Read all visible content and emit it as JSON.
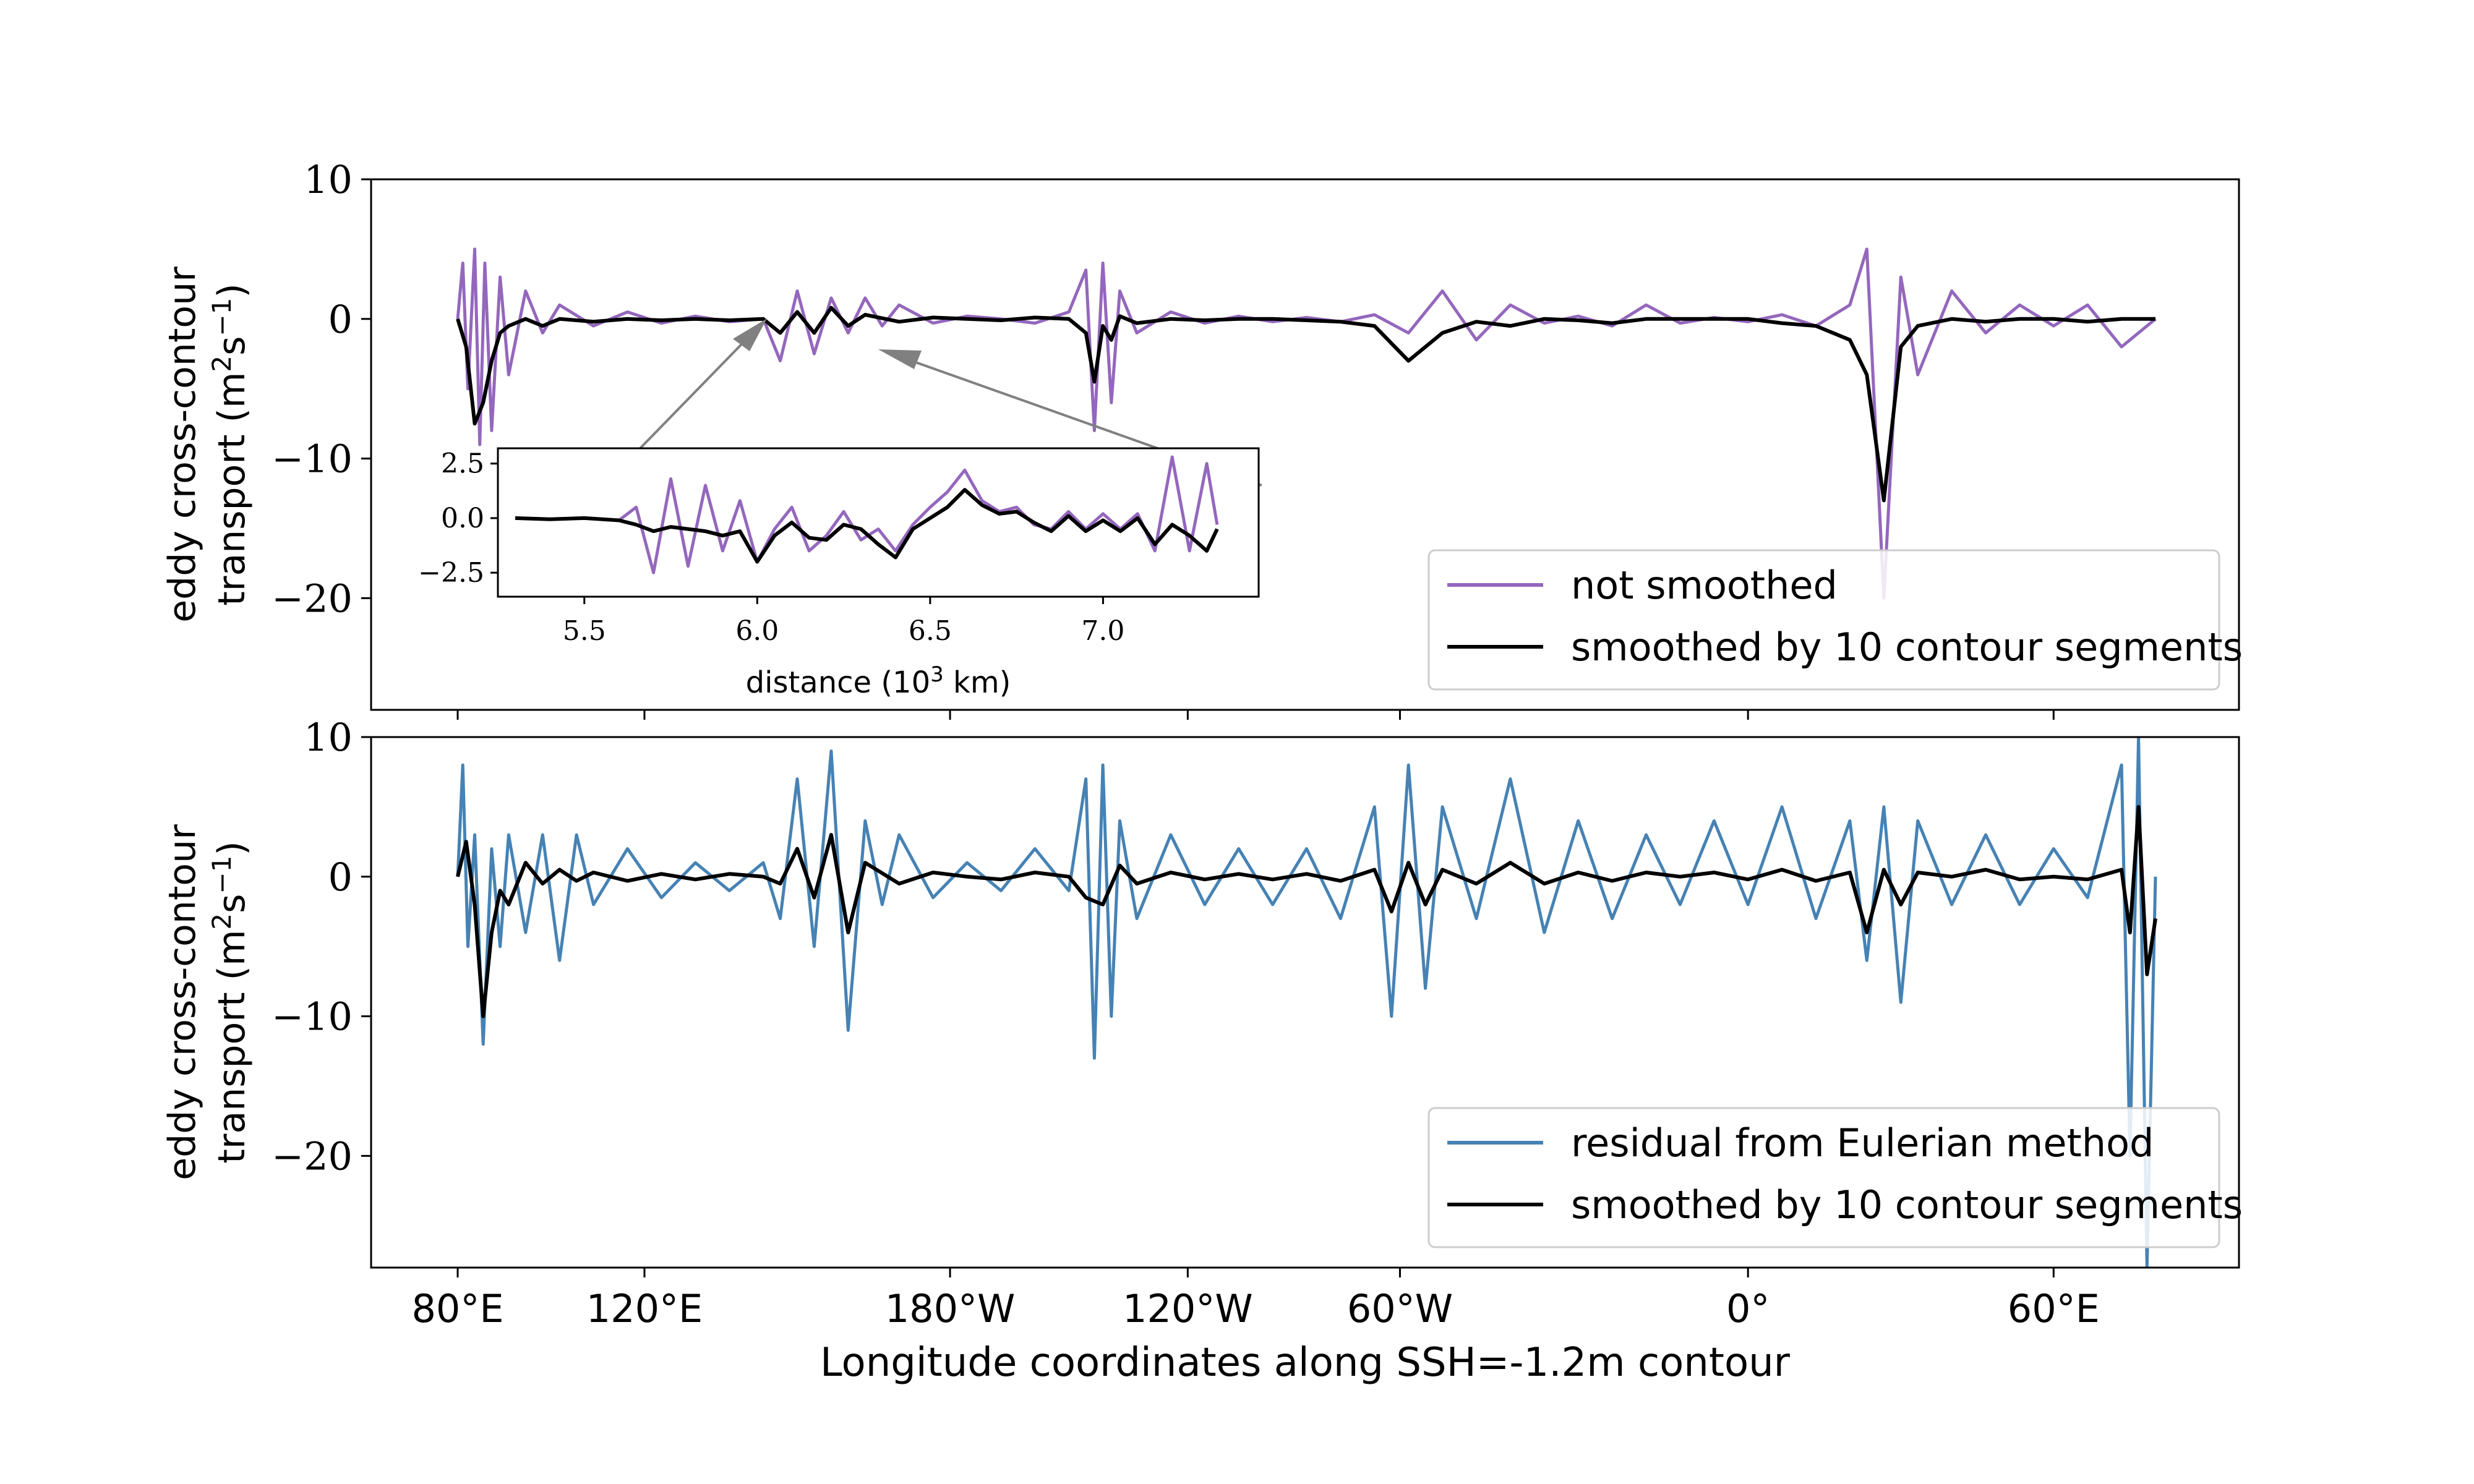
{
  "chart_data": [
    {
      "type": "line",
      "panel": "top",
      "ylabel_line1": "eddy cross-contour",
      "ylabel_line2": "transport (m",
      "ylabel_sup1": "2",
      "ylabel_mid": "s",
      "ylabel_sup2": "−1",
      "ylabel_end": ")",
      "ylim": [
        -28,
        10
      ],
      "yticks": [
        10,
        0,
        -10,
        -20
      ],
      "ytick_labels": [
        "10",
        "0",
        "−10",
        "−20"
      ],
      "grid": false,
      "legend_position": "lower-right",
      "series": [
        {
          "name": "not smoothed",
          "color": "#9467bd",
          "x": [
            0.0,
            0.3,
            0.6,
            1.0,
            1.3,
            1.6,
            2.0,
            2.5,
            3.0,
            4.0,
            5.0,
            6.0,
            8.0,
            10.0,
            12.0,
            14.0,
            16.0,
            18.0,
            19.0,
            20.0,
            21.0,
            22.0,
            23.0,
            24.0,
            25.0,
            26.0,
            28.0,
            30.0,
            32.0,
            34.0,
            36.0,
            37.0,
            37.5,
            38.0,
            38.5,
            39.0,
            40.0,
            42.0,
            44.0,
            46.0,
            48.0,
            50.0,
            52.0,
            54.0,
            56.0,
            58.0,
            60.0,
            62.0,
            64.0,
            66.0,
            68.0,
            70.0,
            72.0,
            74.0,
            76.0,
            78.0,
            80.0,
            82.0,
            83.0,
            84.0,
            85.0,
            86.0,
            88.0,
            90.0,
            92.0,
            94.0,
            96.0,
            98.0,
            100.0
          ],
          "values": [
            0.0,
            4.0,
            -5.0,
            5.0,
            -9.0,
            4.0,
            -8.0,
            3.0,
            -4.0,
            2.0,
            -1.0,
            1.0,
            -0.5,
            0.5,
            -0.3,
            0.2,
            -0.2,
            0.0,
            -3.0,
            2.0,
            -2.5,
            1.5,
            -1.0,
            1.5,
            -0.5,
            1.0,
            -0.3,
            0.2,
            0.0,
            -0.3,
            0.5,
            3.5,
            -8.0,
            4.0,
            -6.0,
            2.0,
            -1.0,
            0.5,
            -0.3,
            0.2,
            -0.2,
            0.1,
            -0.2,
            0.3,
            -1.0,
            2.0,
            -1.5,
            1.0,
            -0.3,
            0.2,
            -0.5,
            1.0,
            -0.3,
            0.1,
            -0.2,
            0.3,
            -0.5,
            1.0,
            5.0,
            -20.0,
            3.0,
            -4.0,
            2.0,
            -1.0,
            1.0,
            -0.5,
            1.0,
            -2.0,
            0.0
          ]
        },
        {
          "name": "smoothed by 10 contour segments",
          "color": "#000000",
          "x": [
            0.0,
            0.5,
            1.0,
            1.5,
            2.0,
            2.5,
            3.0,
            4.0,
            5.0,
            6.0,
            8.0,
            10.0,
            12.0,
            14.0,
            16.0,
            18.0,
            19.0,
            20.0,
            21.0,
            22.0,
            23.0,
            24.0,
            26.0,
            28.0,
            30.0,
            32.0,
            34.0,
            36.0,
            37.0,
            37.5,
            38.0,
            38.5,
            39.0,
            40.0,
            42.0,
            44.0,
            46.0,
            48.0,
            50.0,
            52.0,
            54.0,
            56.0,
            58.0,
            60.0,
            62.0,
            64.0,
            66.0,
            68.0,
            70.0,
            72.0,
            74.0,
            76.0,
            78.0,
            80.0,
            82.0,
            83.0,
            84.0,
            85.0,
            86.0,
            88.0,
            90.0,
            92.0,
            94.0,
            96.0,
            98.0,
            100.0
          ],
          "values": [
            0.0,
            -2.0,
            -7.5,
            -6.0,
            -3.0,
            -1.0,
            -0.5,
            0.0,
            -0.5,
            0.0,
            -0.2,
            0.0,
            -0.1,
            0.0,
            -0.1,
            0.0,
            -1.0,
            0.5,
            -1.0,
            0.8,
            -0.5,
            0.3,
            -0.2,
            0.1,
            0.0,
            -0.1,
            0.1,
            0.0,
            -1.0,
            -4.5,
            -0.5,
            -1.5,
            0.2,
            -0.3,
            0.0,
            -0.1,
            0.0,
            0.0,
            -0.1,
            -0.2,
            -0.5,
            -3.0,
            -1.0,
            -0.2,
            -0.5,
            0.0,
            -0.1,
            -0.3,
            0.0,
            0.0,
            0.0,
            0.0,
            -0.3,
            -0.5,
            -1.5,
            -4.0,
            -13.0,
            -2.0,
            -0.5,
            0.0,
            -0.2,
            0.0,
            0.0,
            -0.2,
            0.0,
            0.0
          ]
        }
      ],
      "inset": {
        "xlabel": "distance (10",
        "xlabel_sup": "3",
        "xlabel_end": " km)",
        "xlim": [
          5.25,
          7.45
        ],
        "ylim": [
          -3.6,
          3.2
        ],
        "xticks": [
          5.5,
          6.0,
          6.5,
          7.0
        ],
        "xtick_labels": [
          "5.5",
          "6.0",
          "6.5",
          "7.0"
        ],
        "yticks": [
          2.5,
          0.0,
          -2.5
        ],
        "ytick_labels": [
          "2.5",
          "0.0",
          "−2.5"
        ],
        "series": [
          {
            "name": "not smoothed",
            "color": "#9467bd",
            "x": [
              5.3,
              5.4,
              5.5,
              5.6,
              5.65,
              5.7,
              5.75,
              5.8,
              5.85,
              5.9,
              5.95,
              6.0,
              6.05,
              6.1,
              6.15,
              6.2,
              6.25,
              6.3,
              6.35,
              6.4,
              6.45,
              6.5,
              6.55,
              6.6,
              6.65,
              6.7,
              6.75,
              6.8,
              6.85,
              6.9,
              6.95,
              7.0,
              7.05,
              7.1,
              7.15,
              7.2,
              7.25,
              7.3,
              7.33
            ],
            "values": [
              0.0,
              -0.05,
              0.0,
              -0.1,
              0.5,
              -2.5,
              1.8,
              -2.2,
              1.5,
              -1.5,
              0.8,
              -2.0,
              -0.5,
              0.5,
              -1.5,
              -0.8,
              0.3,
              -1.0,
              -0.5,
              -1.5,
              -0.3,
              0.5,
              1.2,
              2.2,
              0.8,
              0.3,
              0.5,
              -0.3,
              -0.5,
              0.3,
              -0.5,
              0.2,
              -0.5,
              0.2,
              -1.5,
              2.8,
              -1.5,
              2.5,
              -0.3
            ]
          },
          {
            "name": "smoothed by 10 contour segments",
            "color": "#000000",
            "x": [
              5.3,
              5.4,
              5.5,
              5.6,
              5.65,
              5.7,
              5.75,
              5.8,
              5.85,
              5.9,
              5.95,
              6.0,
              6.05,
              6.1,
              6.15,
              6.2,
              6.25,
              6.3,
              6.35,
              6.4,
              6.45,
              6.5,
              6.55,
              6.6,
              6.65,
              6.7,
              6.75,
              6.8,
              6.85,
              6.9,
              6.95,
              7.0,
              7.05,
              7.1,
              7.15,
              7.2,
              7.25,
              7.3,
              7.33
            ],
            "values": [
              0.0,
              -0.05,
              0.0,
              -0.1,
              -0.3,
              -0.6,
              -0.4,
              -0.5,
              -0.6,
              -0.8,
              -0.6,
              -2.0,
              -0.8,
              -0.2,
              -0.9,
              -1.0,
              -0.3,
              -0.5,
              -1.2,
              -1.8,
              -0.5,
              0.0,
              0.5,
              1.3,
              0.6,
              0.2,
              0.3,
              -0.2,
              -0.6,
              0.1,
              -0.6,
              -0.1,
              -0.6,
              0.0,
              -1.2,
              -0.3,
              -0.8,
              -1.5,
              -0.5
            ]
          }
        ]
      }
    },
    {
      "type": "line",
      "panel": "bottom",
      "ylabel_line1": "eddy cross-contour",
      "ylabel_line2": "transport (m",
      "ylabel_sup1": "2",
      "ylabel_mid": "s",
      "ylabel_sup2": "−1",
      "ylabel_end": ")",
      "ylim": [
        -28,
        10
      ],
      "yticks": [
        10,
        0,
        -10,
        -20
      ],
      "ytick_labels": [
        "10",
        "0",
        "−10",
        "−20"
      ],
      "xlabel": "Longitude coordinates along SSH=-1.2m contour",
      "xticks": [
        0.0,
        11.0,
        29.0,
        43.0,
        55.5,
        76.0,
        94.0
      ],
      "xtick_labels": [
        "80°E",
        "120°E",
        "180°W",
        "120°W",
        "60°W",
        "0°",
        "60°E"
      ],
      "grid": false,
      "legend_position": "lower-right",
      "series": [
        {
          "name": "residual from Eulerian method",
          "color": "#4682b4",
          "x": [
            0.0,
            0.3,
            0.6,
            1.0,
            1.5,
            2.0,
            2.5,
            3.0,
            4.0,
            5.0,
            6.0,
            7.0,
            8.0,
            10.0,
            12.0,
            14.0,
            16.0,
            18.0,
            19.0,
            20.0,
            21.0,
            22.0,
            23.0,
            24.0,
            25.0,
            26.0,
            28.0,
            30.0,
            32.0,
            34.0,
            36.0,
            37.0,
            37.5,
            38.0,
            38.5,
            39.0,
            40.0,
            42.0,
            44.0,
            46.0,
            48.0,
            50.0,
            52.0,
            54.0,
            55.0,
            56.0,
            57.0,
            58.0,
            60.0,
            62.0,
            64.0,
            66.0,
            68.0,
            70.0,
            72.0,
            74.0,
            76.0,
            78.0,
            80.0,
            82.0,
            83.0,
            84.0,
            85.0,
            86.0,
            88.0,
            90.0,
            92.0,
            94.0,
            96.0,
            98.0,
            98.5,
            99.0,
            99.5,
            100.0
          ],
          "values": [
            0.0,
            8.0,
            -5.0,
            3.0,
            -12.0,
            2.0,
            -5.0,
            3.0,
            -4.0,
            3.0,
            -6.0,
            3.0,
            -2.0,
            2.0,
            -1.5,
            1.0,
            -1.0,
            1.0,
            -3.0,
            7.0,
            -5.0,
            9.0,
            -11.0,
            4.0,
            -2.0,
            3.0,
            -1.5,
            1.0,
            -1.0,
            2.0,
            -1.0,
            7.0,
            -13.0,
            8.0,
            -10.0,
            4.0,
            -3.0,
            3.0,
            -2.0,
            2.0,
            -2.0,
            2.0,
            -3.0,
            5.0,
            -10.0,
            8.0,
            -8.0,
            5.0,
            -3.0,
            7.0,
            -4.0,
            4.0,
            -3.0,
            3.0,
            -2.0,
            4.0,
            -2.0,
            5.0,
            -3.0,
            4.0,
            -6.0,
            5.0,
            -9.0,
            4.0,
            -2.0,
            3.0,
            -2.0,
            2.0,
            -1.5,
            8.0,
            -20.0,
            10.0,
            -28.0,
            0.0
          ]
        },
        {
          "name": "smoothed by 10 contour segments",
          "color": "#000000",
          "x": [
            0.0,
            0.5,
            1.0,
            1.5,
            2.0,
            2.5,
            3.0,
            4.0,
            5.0,
            6.0,
            7.0,
            8.0,
            10.0,
            12.0,
            14.0,
            16.0,
            18.0,
            19.0,
            20.0,
            21.0,
            22.0,
            23.0,
            24.0,
            26.0,
            28.0,
            30.0,
            32.0,
            34.0,
            36.0,
            37.0,
            38.0,
            39.0,
            40.0,
            42.0,
            44.0,
            46.0,
            48.0,
            50.0,
            52.0,
            54.0,
            55.0,
            56.0,
            57.0,
            58.0,
            60.0,
            62.0,
            64.0,
            66.0,
            68.0,
            70.0,
            72.0,
            74.0,
            76.0,
            78.0,
            80.0,
            82.0,
            83.0,
            84.0,
            85.0,
            86.0,
            88.0,
            90.0,
            92.0,
            94.0,
            96.0,
            98.0,
            98.5,
            99.0,
            99.5,
            100.0
          ],
          "values": [
            0.0,
            2.5,
            -2.0,
            -10.0,
            -4.0,
            -1.0,
            -2.0,
            1.0,
            -0.5,
            0.5,
            -0.3,
            0.3,
            -0.3,
            0.2,
            -0.2,
            0.2,
            0.0,
            -0.5,
            2.0,
            -1.5,
            3.0,
            -4.0,
            1.0,
            -0.5,
            0.3,
            0.0,
            -0.2,
            0.3,
            0.0,
            -1.5,
            -2.0,
            0.8,
            -0.5,
            0.3,
            -0.2,
            0.2,
            -0.2,
            0.2,
            -0.3,
            0.5,
            -2.5,
            1.0,
            -2.0,
            0.5,
            -0.5,
            1.0,
            -0.5,
            0.3,
            -0.3,
            0.3,
            0.0,
            0.3,
            -0.2,
            0.5,
            -0.3,
            0.3,
            -4.0,
            0.5,
            -2.0,
            0.3,
            0.0,
            0.5,
            -0.2,
            0.0,
            -0.2,
            0.5,
            -4.0,
            5.0,
            -7.0,
            -3.0
          ]
        }
      ]
    }
  ]
}
